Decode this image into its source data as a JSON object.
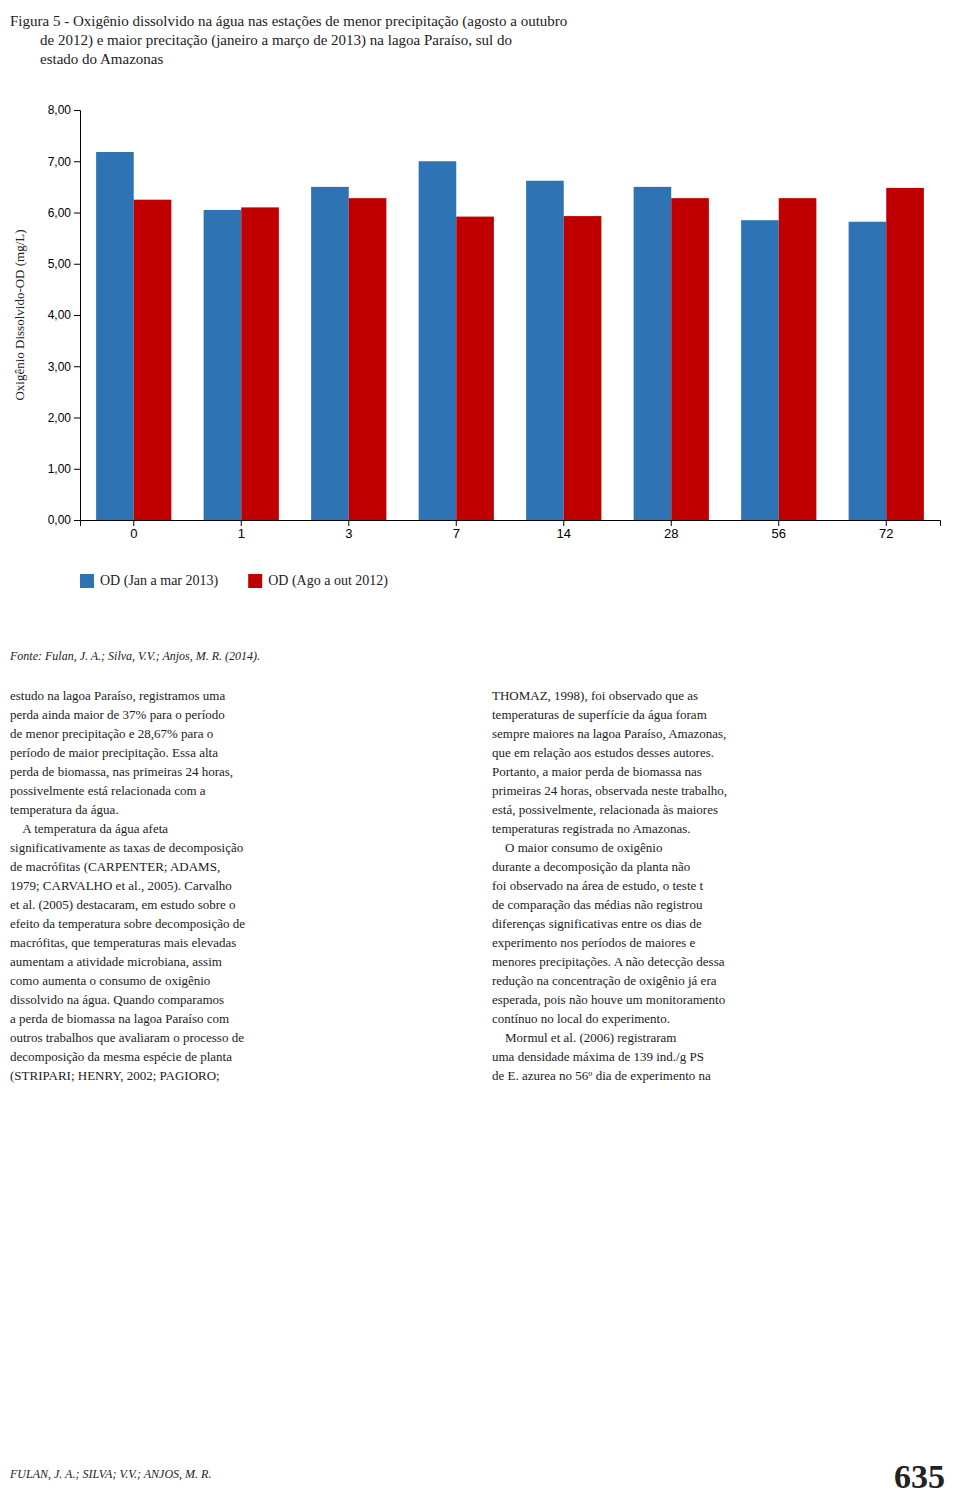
{
  "chart_data": {
    "type": "bar",
    "title": "Figura 5 - Oxigênio dissolvido na água nas estações de menor precipitação (agosto a outubro\n        de 2012) e maior precitação (janeiro a março de 2013) na lagoa Paraíso, sul do\n        estado do Amazonas",
    "y_label": "Oxigênio Dissolvido-OD (mg/L)",
    "categories": [
      "0",
      "1",
      "3",
      "7",
      "14",
      "28",
      "56",
      "72"
    ],
    "series": [
      {
        "name": "OD (Jan a mar 2013)",
        "color": "#2E74B5",
        "values": [
          7.18,
          6.05,
          6.5,
          7.0,
          6.62,
          6.5,
          5.85,
          5.82
        ]
      },
      {
        "name": "OD (Ago a out 2012)",
        "color": "#C00000",
        "values": [
          6.25,
          6.1,
          6.28,
          5.92,
          5.93,
          6.28,
          6.28,
          6.48
        ]
      }
    ],
    "ylim": [
      0,
      8
    ],
    "yticks": [
      {
        "value": 0,
        "label": "0,00"
      },
      {
        "value": 1,
        "label": "1,00"
      },
      {
        "value": 2,
        "label": "2,00"
      },
      {
        "value": 3,
        "label": "3,00"
      },
      {
        "value": 4,
        "label": "4,00"
      },
      {
        "value": 5,
        "label": "5,00"
      },
      {
        "value": 6,
        "label": "6,00"
      },
      {
        "value": 7,
        "label": "7,00"
      },
      {
        "value": 8,
        "label": "8,00"
      }
    ],
    "grid": false,
    "legend": "bottom",
    "annotations": [
      "Fonte: Fulan, J. A.; Silva, V.V.; Anjos, M. R. (2014).",
      "estudo na lagoa Paraíso, registramos uma\nperda ainda maior de 37% para o período\nde menor precipitação e 28,67% para o\nperíodo de maior precipitação. Essa alta\nperda de biomassa, nas primeiras 24 horas,\npossivelmente está relacionada com a\ntemperatura da água.\n    A temperatura da água afeta\nsignificativamente as taxas de decomposição\nde macrófitas (CARPENTER; ADAMS,\n1979; CARVALHO et al., 2005). Carvalho\net al. (2005) destacaram, em estudo sobre o\nefeito da temperatura sobre decomposição de\nmacrófitas, que temperaturas mais elevadas\naumentam a atividade microbiana, assim\ncomo aumenta o consumo de oxigênio\ndissolvido na água. Quando comparamos\na perda de biomassa na lagoa Paraíso com\noutros trabalhos que avaliaram o processo de\ndecomposição da mesma espécie de planta\n(STRIPARI; HENRY, 2002; PAGIORO;",
      "THOMAZ, 1998), foi observado que as\ntemperaturas de superfície da água foram\nsempre maiores na lagoa Paraíso, Amazonas,\nque em relação aos estudos desses autores.\nPortanto, a maior perda de biomassa nas\nprimeiras 24 horas, observada neste trabalho,\nestá, possivelmente, relacionada às maiores\ntemperaturas registrada no Amazonas.\n    O maior consumo de oxigênio\ndurante a decomposição da planta não\nfoi observado na área de estudo, o teste t\nde comparação das médias não registrou\ndiferenças significativas entre os dias de\nexperimento nos períodos de maiores e\nmenores precipitações. A não detecção dessa\nredução na concentração de oxigênio já era\nesperada, pois não houve um monitoramento\ncontínuo no local do experimento.\n    Mormul et al. (2006) registraram\numa densidade máxima de 139 ind./g PS\nde E. azurea no 56º dia de experimento na",
      "FULAN, J. A.; SILVA; V.V.; ANJOS, M. R.",
      "635"
    ]
  }
}
